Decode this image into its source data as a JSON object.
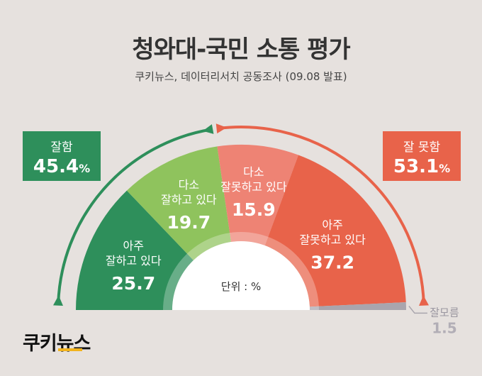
{
  "title": "청와대-국민 소통 평가",
  "subtitle": "쿠키뉴스, 데이터리서치 공동조사 (09.08 발표)",
  "badges": {
    "good": {
      "label": "잘함",
      "value": "45.4",
      "unit": "%"
    },
    "bad": {
      "label": "잘 못함",
      "value": "53.1",
      "unit": "%"
    }
  },
  "unit_label": "단위 : %",
  "logo": "쿠키뉴스",
  "colors": {
    "very_good": "#2e8f5b",
    "somewhat_good": "#8fc35d",
    "somewhat_bad": "#ee8374",
    "very_bad": "#e8634a",
    "unknown": "#a9a5ad",
    "background": "#e6e1de"
  },
  "chart_data": {
    "type": "pie",
    "shape": "semicircle",
    "unit": "%",
    "slices": [
      {
        "label_lines": [
          "아주",
          "잘하고 있다"
        ],
        "value": 25.7,
        "display": "25.7",
        "color": "#2e8f5b"
      },
      {
        "label_lines": [
          "다소",
          "잘하고 있다"
        ],
        "value": 19.7,
        "display": "19.7",
        "color": "#8fc35d"
      },
      {
        "label_lines": [
          "다소",
          "잘못하고 있다"
        ],
        "value": 15.9,
        "display": "15.9",
        "color": "#ee8374"
      },
      {
        "label_lines": [
          "아주",
          "잘못하고 있다"
        ],
        "value": 37.2,
        "display": "37.2",
        "color": "#e8634a"
      },
      {
        "label_lines": [
          "잘모름"
        ],
        "value": 1.5,
        "display": "1.5",
        "color": "#a9a5ad",
        "outside": true
      }
    ],
    "groups": [
      {
        "label": "잘함",
        "value": 45.4
      },
      {
        "label": "잘 못함",
        "value": 53.1
      }
    ]
  }
}
